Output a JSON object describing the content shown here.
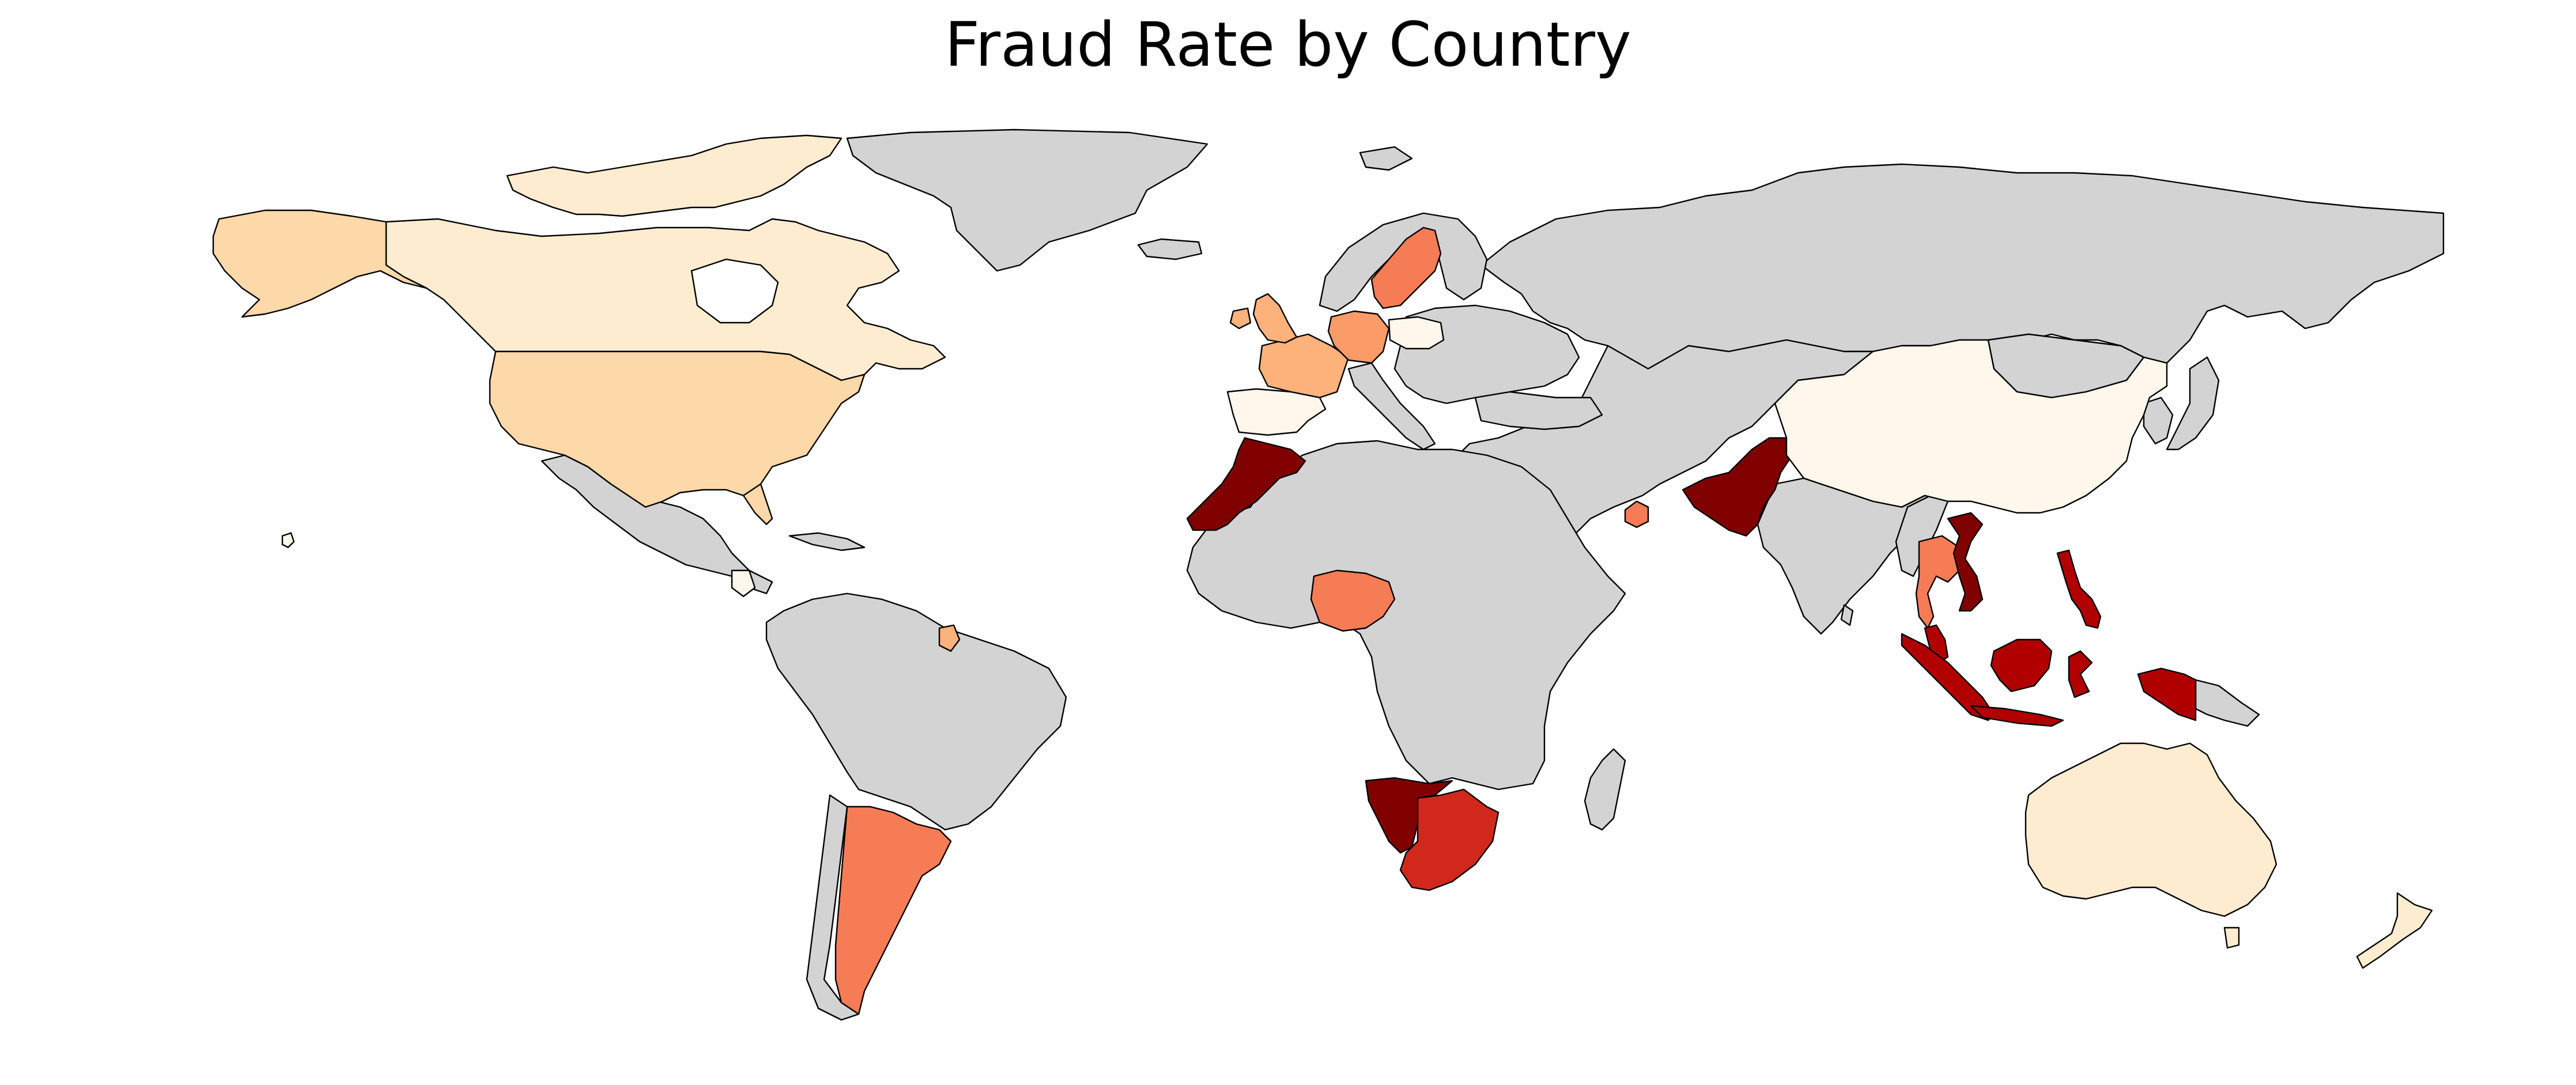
{
  "title": "Fraud Rate by Country",
  "colors": {
    "no_data": "#d3d3d3",
    "scale": "OrRd",
    "levels": {
      "lowest": "#fff7ec",
      "very_low": "#feecd0",
      "low": "#fdd8a8",
      "low_mid": "#fdb27b",
      "mid_low": "#fb9b68",
      "mid": "#f67c55",
      "high": "#d0291b",
      "very_high": "#b00000",
      "highest": "#800000"
    }
  },
  "chart_data": {
    "type": "choropleth",
    "title": "Fraud Rate by Country",
    "legend": "none",
    "shaded_regions": [
      {
        "region": "Canada",
        "level": "very_low"
      },
      {
        "region": "United States",
        "level": "low"
      },
      {
        "region": "Alaska (United States)",
        "level": "low"
      },
      {
        "region": "Australia",
        "level": "very_low"
      },
      {
        "region": "New Zealand",
        "level": "very_low"
      },
      {
        "region": "China",
        "level": "lowest"
      },
      {
        "region": "Spain",
        "level": "lowest"
      },
      {
        "region": "Poland",
        "level": "lowest"
      },
      {
        "region": "Guatemala",
        "level": "lowest"
      },
      {
        "region": "Hawaii (United States)",
        "level": "lowest"
      },
      {
        "region": "United Kingdom",
        "level": "low_mid"
      },
      {
        "region": "France",
        "level": "low_mid"
      },
      {
        "region": "Germany",
        "level": "mid_low"
      },
      {
        "region": "Suriname",
        "level": "low_mid"
      },
      {
        "region": "Sweden",
        "level": "mid"
      },
      {
        "region": "Nigeria",
        "level": "mid"
      },
      {
        "region": "Argentina",
        "level": "mid"
      },
      {
        "region": "Thailand",
        "level": "mid"
      },
      {
        "region": "United Arab Emirates",
        "level": "mid"
      },
      {
        "region": "South Africa",
        "level": "high"
      },
      {
        "region": "Indonesia",
        "level": "very_high"
      },
      {
        "region": "Philippines",
        "level": "very_high"
      },
      {
        "region": "Malaysia",
        "level": "very_high"
      },
      {
        "region": "Morocco",
        "level": "highest"
      },
      {
        "region": "Pakistan",
        "level": "highest"
      },
      {
        "region": "Vietnam",
        "level": "highest"
      },
      {
        "region": "Namibia",
        "level": "highest"
      }
    ]
  }
}
